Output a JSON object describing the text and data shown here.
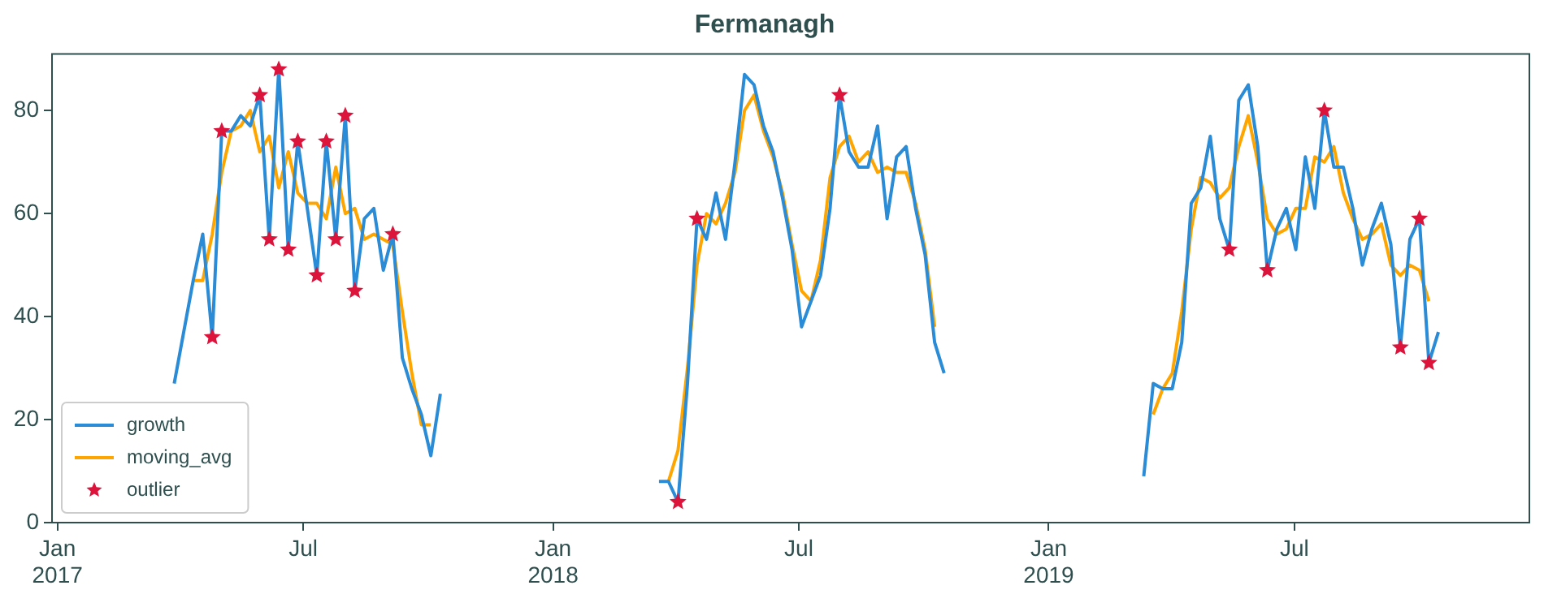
{
  "chart_data": {
    "type": "line",
    "title": "Fermanagh",
    "x": [
      "2017-03-28",
      "2017-04-04",
      "2017-04-11",
      "2017-04-18",
      "2017-04-25",
      "2017-05-02",
      "2017-05-09",
      "2017-05-16",
      "2017-05-23",
      "2017-05-30",
      "2017-06-06",
      "2017-06-13",
      "2017-06-20",
      "2017-06-27",
      "2017-07-04",
      "2017-07-11",
      "2017-07-18",
      "2017-07-25",
      "2017-08-01",
      "2017-08-08",
      "2017-08-15",
      "2017-08-22",
      "2017-08-29",
      "2017-09-05",
      "2017-09-12",
      "2017-09-19",
      "2017-09-26",
      "2017-10-03",
      "2017-10-10",
      "2017-10-17",
      "2018-03-20",
      "2018-03-27",
      "2018-04-03",
      "2018-04-10",
      "2018-04-17",
      "2018-04-24",
      "2018-05-01",
      "2018-05-08",
      "2018-05-15",
      "2018-05-22",
      "2018-05-29",
      "2018-06-05",
      "2018-06-12",
      "2018-06-19",
      "2018-06-26",
      "2018-07-03",
      "2018-07-10",
      "2018-07-17",
      "2018-07-24",
      "2018-07-31",
      "2018-08-07",
      "2018-08-14",
      "2018-08-21",
      "2018-08-28",
      "2018-09-04",
      "2018-09-11",
      "2018-09-18",
      "2018-09-25",
      "2018-10-02",
      "2018-10-09",
      "2018-10-16",
      "2018-10-23",
      "2019-03-12",
      "2019-03-19",
      "2019-03-26",
      "2019-04-02",
      "2019-04-09",
      "2019-04-16",
      "2019-04-23",
      "2019-04-30",
      "2019-05-07",
      "2019-05-14",
      "2019-05-21",
      "2019-05-28",
      "2019-06-04",
      "2019-06-11",
      "2019-06-18",
      "2019-06-25",
      "2019-07-02",
      "2019-07-09",
      "2019-07-16",
      "2019-07-23",
      "2019-07-30",
      "2019-08-06",
      "2019-08-13",
      "2019-08-20",
      "2019-08-27",
      "2019-09-03",
      "2019-09-10",
      "2019-09-17",
      "2019-09-24",
      "2019-10-01",
      "2019-10-08",
      "2019-10-15"
    ],
    "series": [
      {
        "name": "growth",
        "type": "line",
        "marker": "none",
        "color": "#2a8bd6",
        "values": [
          27,
          37,
          47,
          56,
          36,
          76,
          76,
          79,
          77,
          83,
          55,
          88,
          53,
          74,
          61,
          48,
          74,
          55,
          79,
          45,
          59,
          61,
          49,
          56,
          32,
          26,
          21,
          13,
          25,
          null,
          8,
          8,
          4,
          27,
          59,
          55,
          64,
          55,
          70,
          87,
          85,
          77,
          72,
          63,
          53,
          38,
          43,
          48,
          61,
          83,
          72,
          69,
          69,
          77,
          59,
          71,
          73,
          61,
          52,
          35,
          29,
          null,
          9,
          27,
          26,
          26,
          35,
          62,
          65,
          75,
          59,
          53,
          82,
          85,
          73,
          49,
          57,
          61,
          53,
          71,
          61,
          80,
          69,
          69,
          61,
          50,
          57,
          62,
          54,
          34,
          55,
          59,
          31,
          37
        ]
      },
      {
        "name": "moving_avg",
        "type": "line",
        "marker": "none",
        "color": "#ffa500",
        "values": [
          null,
          null,
          47,
          47,
          56,
          68,
          76,
          77,
          80,
          72,
          75,
          65,
          72,
          64,
          62,
          62,
          59,
          69,
          60,
          61,
          55,
          56,
          55,
          54,
          41,
          29,
          19,
          19,
          null,
          null,
          null,
          8,
          14,
          30,
          50,
          60,
          58,
          62,
          68,
          80,
          83,
          76,
          71,
          64,
          54,
          45,
          43,
          51,
          67,
          73,
          75,
          70,
          72,
          68,
          69,
          68,
          68,
          62,
          53,
          38,
          null,
          null,
          null,
          21,
          26,
          29,
          41,
          57,
          67,
          66,
          63,
          65,
          73,
          79,
          70,
          59,
          56,
          57,
          61,
          61,
          71,
          70,
          73,
          64,
          59,
          55,
          56,
          58,
          50,
          48,
          50,
          49,
          43,
          null
        ]
      },
      {
        "name": "outlier",
        "type": "scatter",
        "marker": "star",
        "color": "#dc143c",
        "values": [
          null,
          null,
          null,
          null,
          36,
          76,
          null,
          null,
          null,
          83,
          55,
          88,
          53,
          74,
          null,
          48,
          74,
          55,
          79,
          45,
          null,
          null,
          null,
          56,
          null,
          null,
          null,
          null,
          null,
          null,
          null,
          null,
          4,
          null,
          59,
          null,
          null,
          null,
          null,
          null,
          null,
          null,
          null,
          null,
          null,
          null,
          null,
          null,
          null,
          83,
          null,
          null,
          null,
          null,
          null,
          null,
          null,
          null,
          null,
          null,
          null,
          null,
          null,
          null,
          null,
          null,
          null,
          null,
          null,
          null,
          null,
          53,
          null,
          null,
          null,
          49,
          null,
          null,
          null,
          null,
          null,
          80,
          null,
          null,
          null,
          null,
          null,
          null,
          null,
          34,
          null,
          59,
          31,
          null
        ]
      }
    ],
    "xlim": [
      "2016-12-28",
      "2019-12-21"
    ],
    "xticks": [
      {
        "value": "2017-01-01",
        "label": "Jan\n2017"
      },
      {
        "value": "2017-07-01",
        "label": "Jul"
      },
      {
        "value": "2018-01-01",
        "label": "Jan\n2018"
      },
      {
        "value": "2018-07-01",
        "label": "Jul"
      },
      {
        "value": "2019-01-01",
        "label": "Jan\n2019"
      },
      {
        "value": "2019-07-01",
        "label": "Jul"
      }
    ],
    "ylim": [
      0,
      91
    ],
    "yticks": [
      0,
      20,
      40,
      60,
      80
    ],
    "grid": false,
    "legend": "bottom left"
  }
}
